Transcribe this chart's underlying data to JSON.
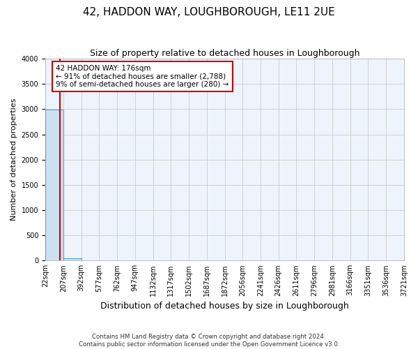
{
  "title": "42, HADDON WAY, LOUGHBOROUGH, LE11 2UE",
  "subtitle": "Size of property relative to detached houses in Loughborough",
  "xlabel": "Distribution of detached houses by size in Loughborough",
  "ylabel": "Number of detached properties",
  "footer_line1": "Contains HM Land Registry data © Crown copyright and database right 2024.",
  "footer_line2": "Contains public sector information licensed under the Open Government Licence v3.0.",
  "bin_edges": [
    22,
    207,
    392,
    577,
    762,
    947,
    1132,
    1317,
    1502,
    1687,
    1872,
    2056,
    2241,
    2426,
    2611,
    2796,
    2981,
    3166,
    3351,
    3536,
    3721
  ],
  "bar_heights": [
    2988,
    48,
    8,
    4,
    3,
    2,
    2,
    2,
    1,
    1,
    1,
    1,
    1,
    1,
    0,
    0,
    0,
    0,
    0,
    0
  ],
  "bar_color": "#cce0f0",
  "bar_edge_color": "#5599cc",
  "property_size": 176,
  "property_label": "42 HADDON WAY: 176sqm",
  "annotation_line1": "← 91% of detached houses are smaller (2,788)",
  "annotation_line2": "9% of semi-detached houses are larger (280) →",
  "annotation_box_color": "#ffffff",
  "annotation_box_edge": "#cc0000",
  "vline_color": "#cc0000",
  "ylim": [
    0,
    4000
  ],
  "yticks": [
    0,
    500,
    1000,
    1500,
    2000,
    2500,
    3000,
    3500,
    4000
  ],
  "grid_color": "#cccccc",
  "bg_color": "#eef4fb",
  "title_fontsize": 11,
  "subtitle_fontsize": 9,
  "tick_fontsize": 7,
  "ylabel_fontsize": 8,
  "xlabel_fontsize": 9
}
